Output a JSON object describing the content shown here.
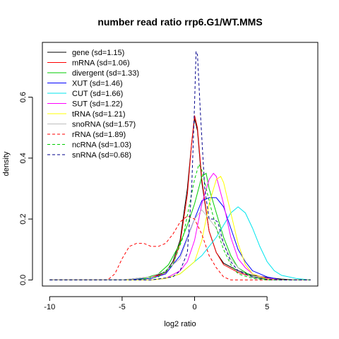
{
  "chart_data": {
    "type": "line",
    "title": "number read ratio rrp6.G1/WT.MMS",
    "xlabel": "log2 ratio",
    "ylabel": "density",
    "xlim": [
      -10.5,
      8.5
    ],
    "ylim": [
      -0.02,
      0.78
    ],
    "xticks": [
      -10,
      -5,
      0,
      5
    ],
    "yticks": [
      0.0,
      0.2,
      0.4,
      0.6
    ],
    "legend_position": "top-left",
    "series": [
      {
        "name": "gene (sd=1.15)",
        "color": "#000000",
        "dash": false,
        "points": [
          [
            -5,
            0
          ],
          [
            -4,
            0.005
          ],
          [
            -3,
            0.01
          ],
          [
            -2,
            0.025
          ],
          [
            -1.5,
            0.06
          ],
          [
            -1,
            0.13
          ],
          [
            -0.5,
            0.3
          ],
          [
            -0.2,
            0.45
          ],
          [
            0,
            0.53
          ],
          [
            0.2,
            0.49
          ],
          [
            0.5,
            0.32
          ],
          [
            1,
            0.16
          ],
          [
            1.5,
            0.09
          ],
          [
            2,
            0.055
          ],
          [
            3,
            0.03
          ],
          [
            4,
            0.015
          ],
          [
            5,
            0.008
          ],
          [
            6,
            0.003
          ],
          [
            7,
            0
          ]
        ]
      },
      {
        "name": "mRNA (sd=1.06)",
        "color": "#ff0000",
        "dash": false,
        "points": [
          [
            -5,
            0
          ],
          [
            -4,
            0.004
          ],
          [
            -3,
            0.01
          ],
          [
            -2,
            0.02
          ],
          [
            -1.5,
            0.05
          ],
          [
            -1,
            0.12
          ],
          [
            -0.5,
            0.28
          ],
          [
            -0.2,
            0.45
          ],
          [
            0,
            0.54
          ],
          [
            0.2,
            0.5
          ],
          [
            0.5,
            0.33
          ],
          [
            1,
            0.16
          ],
          [
            1.5,
            0.09
          ],
          [
            2,
            0.05
          ],
          [
            3,
            0.025
          ],
          [
            4,
            0.01
          ],
          [
            5,
            0.005
          ],
          [
            6,
            0
          ]
        ]
      },
      {
        "name": "divergent (sd=1.33)",
        "color": "#00cd00",
        "dash": false,
        "points": [
          [
            -5,
            0
          ],
          [
            -3.5,
            0.005
          ],
          [
            -2.5,
            0.02
          ],
          [
            -1.8,
            0.05
          ],
          [
            -1,
            0.12
          ],
          [
            -0.5,
            0.18
          ],
          [
            0,
            0.25
          ],
          [
            0.5,
            0.34
          ],
          [
            0.8,
            0.35
          ],
          [
            1,
            0.3
          ],
          [
            1.5,
            0.22
          ],
          [
            2,
            0.14
          ],
          [
            2.5,
            0.08
          ],
          [
            3,
            0.04
          ],
          [
            4,
            0.01
          ],
          [
            5,
            0.003
          ],
          [
            6,
            0
          ]
        ]
      },
      {
        "name": "XUT (sd=1.46)",
        "color": "#0000ff",
        "dash": false,
        "points": [
          [
            -5,
            0
          ],
          [
            -3,
            0.005
          ],
          [
            -2,
            0.02
          ],
          [
            -1,
            0.08
          ],
          [
            -0.5,
            0.14
          ],
          [
            0,
            0.2
          ],
          [
            0.5,
            0.26
          ],
          [
            1,
            0.27
          ],
          [
            1.5,
            0.27
          ],
          [
            2,
            0.24
          ],
          [
            2.5,
            0.17
          ],
          [
            3,
            0.1
          ],
          [
            3.5,
            0.06
          ],
          [
            4,
            0.03
          ],
          [
            5,
            0.01
          ],
          [
            6,
            0
          ]
        ]
      },
      {
        "name": "CUT (sd=1.66)",
        "color": "#00e5ee",
        "dash": false,
        "points": [
          [
            -3,
            0
          ],
          [
            -2,
            0.005
          ],
          [
            -1,
            0.02
          ],
          [
            0,
            0.06
          ],
          [
            0.5,
            0.08
          ],
          [
            1,
            0.11
          ],
          [
            1.5,
            0.14
          ],
          [
            2,
            0.18
          ],
          [
            2.5,
            0.22
          ],
          [
            3,
            0.24
          ],
          [
            3.5,
            0.22
          ],
          [
            4,
            0.17
          ],
          [
            4.5,
            0.11
          ],
          [
            5,
            0.06
          ],
          [
            5.5,
            0.03
          ],
          [
            6,
            0.015
          ],
          [
            7,
            0.005
          ],
          [
            8,
            0
          ]
        ]
      },
      {
        "name": "SUT (sd=1.22)",
        "color": "#ff00ff",
        "dash": false,
        "points": [
          [
            -3,
            0
          ],
          [
            -2,
            0.005
          ],
          [
            -1,
            0.03
          ],
          [
            -0.5,
            0.06
          ],
          [
            0,
            0.13
          ],
          [
            0.5,
            0.25
          ],
          [
            1,
            0.33
          ],
          [
            1.3,
            0.35
          ],
          [
            1.5,
            0.34
          ],
          [
            2,
            0.25
          ],
          [
            2.5,
            0.14
          ],
          [
            3,
            0.07
          ],
          [
            3.5,
            0.04
          ],
          [
            4,
            0.02
          ],
          [
            5,
            0.005
          ],
          [
            6,
            0
          ]
        ]
      },
      {
        "name": "tRNA (sd=1.21)",
        "color": "#ffff00",
        "dash": false,
        "points": [
          [
            -3,
            0
          ],
          [
            -2,
            0.005
          ],
          [
            -1,
            0.02
          ],
          [
            0,
            0.06
          ],
          [
            0.5,
            0.13
          ],
          [
            1,
            0.25
          ],
          [
            1.5,
            0.33
          ],
          [
            1.8,
            0.34
          ],
          [
            2,
            0.32
          ],
          [
            2.5,
            0.22
          ],
          [
            3,
            0.12
          ],
          [
            3.5,
            0.05
          ],
          [
            4,
            0.02
          ],
          [
            5,
            0.003
          ],
          [
            6,
            0
          ]
        ]
      },
      {
        "name": "snoRNA (sd=1.57)",
        "color": "#bebebe",
        "dash": false,
        "points": [
          [
            -5,
            0
          ],
          [
            -3,
            0.01
          ],
          [
            -2,
            0.03
          ],
          [
            -1,
            0.07
          ],
          [
            0,
            0.2
          ],
          [
            0.5,
            0.23
          ],
          [
            1,
            0.2
          ],
          [
            1.5,
            0.17
          ],
          [
            2,
            0.12
          ],
          [
            2.5,
            0.07
          ],
          [
            3,
            0.04
          ],
          [
            3.5,
            0.02
          ],
          [
            4,
            0.008
          ],
          [
            5,
            0
          ]
        ]
      },
      {
        "name": "rRNA (sd=1.89)",
        "color": "#ff0000",
        "dash": true,
        "points": [
          [
            -6,
            0
          ],
          [
            -5.5,
            0.02
          ],
          [
            -5,
            0.07
          ],
          [
            -4.5,
            0.11
          ],
          [
            -4,
            0.12
          ],
          [
            -3.5,
            0.12
          ],
          [
            -3,
            0.11
          ],
          [
            -2.5,
            0.11
          ],
          [
            -2,
            0.12
          ],
          [
            -1.5,
            0.15
          ],
          [
            -1,
            0.19
          ],
          [
            -0.5,
            0.21
          ],
          [
            0,
            0.2
          ],
          [
            0.5,
            0.15
          ],
          [
            1,
            0.08
          ],
          [
            1.5,
            0.04
          ],
          [
            2,
            0.01
          ],
          [
            2.5,
            0
          ]
        ]
      },
      {
        "name": "ncRNA (sd=1.03)",
        "color": "#00cd00",
        "dash": true,
        "points": [
          [
            -4,
            0
          ],
          [
            -2.5,
            0.01
          ],
          [
            -1.5,
            0.05
          ],
          [
            -0.8,
            0.14
          ],
          [
            -0.3,
            0.26
          ],
          [
            0,
            0.33
          ],
          [
            0.3,
            0.38
          ],
          [
            0.5,
            0.36
          ],
          [
            1,
            0.26
          ],
          [
            1.5,
            0.17
          ],
          [
            2,
            0.1
          ],
          [
            2.5,
            0.05
          ],
          [
            3,
            0.02
          ],
          [
            4,
            0.005
          ],
          [
            5,
            0
          ]
        ]
      },
      {
        "name": "snRNA (sd=0.68)",
        "color": "#00008b",
        "dash": true,
        "points": [
          [
            -3,
            0
          ],
          [
            -1.5,
            0.01
          ],
          [
            -1,
            0.03
          ],
          [
            -0.5,
            0.09
          ],
          [
            -0.2,
            0.3
          ],
          [
            0,
            0.58
          ],
          [
            0.1,
            0.75
          ],
          [
            0.2,
            0.74
          ],
          [
            0.4,
            0.55
          ],
          [
            0.7,
            0.3
          ],
          [
            1,
            0.2
          ],
          [
            1.3,
            0.2
          ],
          [
            1.6,
            0.19
          ],
          [
            2,
            0.12
          ],
          [
            2.5,
            0.06
          ],
          [
            3,
            0.03
          ],
          [
            4,
            0.01
          ],
          [
            5,
            0.002
          ],
          [
            6,
            0
          ]
        ]
      }
    ]
  }
}
